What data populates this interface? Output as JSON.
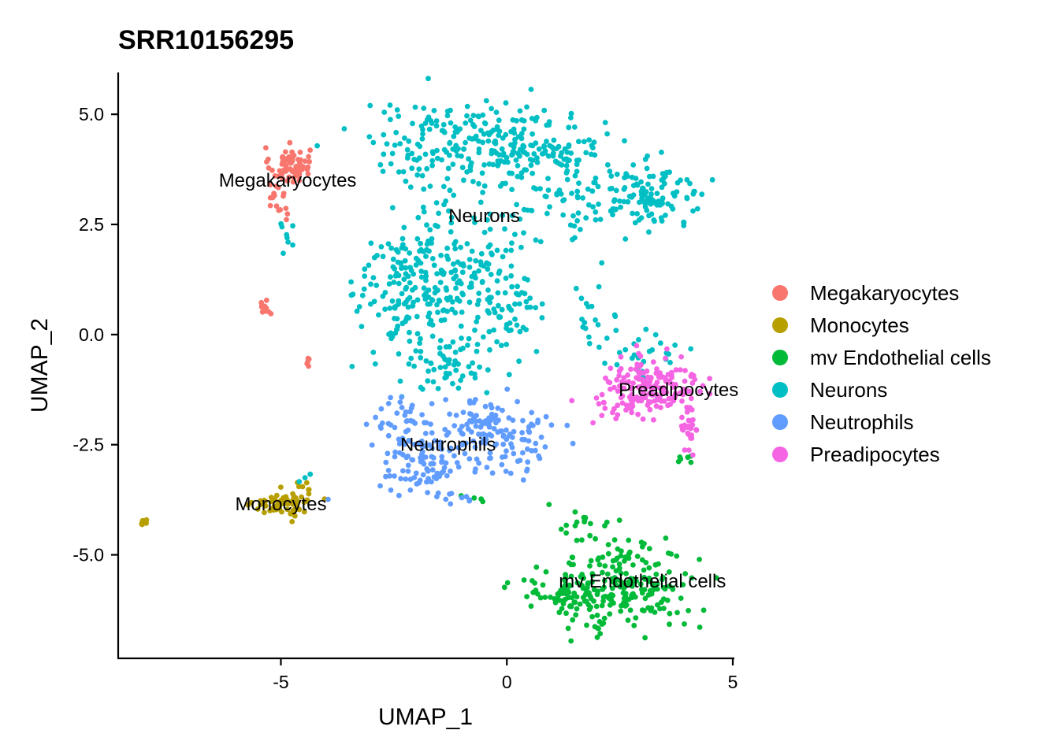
{
  "chart_data": {
    "type": "scatter",
    "title": "SRR10156295",
    "xlabel": "UMAP_1",
    "ylabel": "UMAP_2",
    "xlim": [
      -8.6,
      5.0
    ],
    "ylim": [
      -7.35,
      5.95
    ],
    "x_ticks": [
      {
        "value": -5,
        "label": "-5"
      },
      {
        "value": 0,
        "label": "0"
      },
      {
        "value": 5,
        "label": "5"
      }
    ],
    "y_ticks": [
      {
        "value": 5.0,
        "label": "5.0"
      },
      {
        "value": 2.5,
        "label": "2.5"
      },
      {
        "value": 0.0,
        "label": "0.0"
      },
      {
        "value": -2.5,
        "label": "-2.5"
      },
      {
        "value": -5.0,
        "label": "-5.0"
      }
    ],
    "grid": false,
    "legend_position": "right",
    "series": [
      {
        "name": "Megakaryocytes",
        "color": "#F8766D",
        "regions": [
          {
            "cx": -4.8,
            "cy": 3.85,
            "sx": 0.22,
            "sy": 0.2,
            "n": 70
          },
          {
            "cx": -5.05,
            "cy": 3.1,
            "sx": 0.15,
            "sy": 0.35,
            "n": 18
          },
          {
            "cx": -5.35,
            "cy": 0.62,
            "sx": 0.07,
            "sy": 0.08,
            "n": 12
          },
          {
            "cx": -4.4,
            "cy": -0.55,
            "sx": 0.05,
            "sy": 0.08,
            "n": 5
          }
        ]
      },
      {
        "name": "Monocytes",
        "color": "#B79F00",
        "regions": [
          {
            "cx": -5.0,
            "cy": -3.85,
            "sx": 0.3,
            "sy": 0.15,
            "n": 55
          },
          {
            "cx": -4.55,
            "cy": -3.6,
            "sx": 0.12,
            "sy": 0.2,
            "n": 15
          },
          {
            "cx": -8.05,
            "cy": -4.25,
            "sx": 0.05,
            "sy": 0.04,
            "n": 8
          }
        ]
      },
      {
        "name": "mv Endothelial cells",
        "color": "#00BA38",
        "regions": [
          {
            "cx": 2.6,
            "cy": -5.7,
            "sx": 0.8,
            "sy": 0.55,
            "n": 230
          },
          {
            "cx": 1.3,
            "cy": -5.95,
            "sx": 0.5,
            "sy": 0.2,
            "n": 45
          },
          {
            "cx": 1.5,
            "cy": -4.3,
            "sx": 0.4,
            "sy": 0.2,
            "n": 15
          },
          {
            "cx": 3.95,
            "cy": -2.75,
            "sx": 0.12,
            "sy": 0.12,
            "n": 6
          },
          {
            "cx": -0.6,
            "cy": -3.7,
            "sx": 0.2,
            "sy": 0.08,
            "n": 4
          }
        ]
      },
      {
        "name": "Neurons",
        "color": "#00BFC4",
        "regions": [
          {
            "cx": -1.0,
            "cy": 4.3,
            "sx": 1.1,
            "sy": 0.5,
            "n": 200
          },
          {
            "cx": 0.9,
            "cy": 4.3,
            "sx": 0.6,
            "sy": 0.35,
            "n": 90
          },
          {
            "cx": 3.2,
            "cy": 3.15,
            "sx": 0.6,
            "sy": 0.35,
            "n": 110
          },
          {
            "cx": 1.5,
            "cy": 3.0,
            "sx": 0.7,
            "sy": 0.45,
            "n": 60
          },
          {
            "cx": -2.0,
            "cy": 1.1,
            "sx": 0.65,
            "sy": 0.8,
            "n": 210
          },
          {
            "cx": -0.5,
            "cy": 1.6,
            "sx": 0.6,
            "sy": 0.7,
            "n": 90
          },
          {
            "cx": -1.3,
            "cy": -0.6,
            "sx": 0.6,
            "sy": 0.4,
            "n": 60
          },
          {
            "cx": 0.2,
            "cy": 0.3,
            "sx": 0.3,
            "sy": 0.4,
            "n": 35
          },
          {
            "cx": 1.9,
            "cy": 0.3,
            "sx": 0.3,
            "sy": 0.4,
            "n": 20
          },
          {
            "cx": 3.0,
            "cy": -0.5,
            "sx": 0.6,
            "sy": 0.3,
            "n": 25
          },
          {
            "cx": -4.8,
            "cy": 2.0,
            "sx": 0.1,
            "sy": 0.5,
            "n": 8
          },
          {
            "cx": -4.4,
            "cy": -3.2,
            "sx": 0.1,
            "sy": 0.1,
            "n": 3
          }
        ]
      },
      {
        "name": "Neutrophils",
        "color": "#619CFF",
        "regions": [
          {
            "cx": -1.8,
            "cy": -2.9,
            "sx": 0.55,
            "sy": 0.3,
            "n": 90
          },
          {
            "cx": -0.5,
            "cy": -2.2,
            "sx": 0.6,
            "sy": 0.35,
            "n": 110
          },
          {
            "cx": -2.3,
            "cy": -1.9,
            "sx": 0.3,
            "sy": 0.3,
            "n": 35
          },
          {
            "cx": -1.3,
            "cy": -3.7,
            "sx": 0.4,
            "sy": 0.08,
            "n": 10
          },
          {
            "cx": 0.4,
            "cy": -2.6,
            "sx": 0.4,
            "sy": 0.4,
            "n": 30
          }
        ]
      },
      {
        "name": "Preadipocytes",
        "color": "#F564E3",
        "regions": [
          {
            "cx": 3.2,
            "cy": -1.15,
            "sx": 0.55,
            "sy": 0.35,
            "n": 150
          },
          {
            "cx": 2.6,
            "cy": -1.6,
            "sx": 0.35,
            "sy": 0.25,
            "n": 30
          },
          {
            "cx": 4.0,
            "cy": -2.3,
            "sx": 0.12,
            "sy": 0.3,
            "n": 25
          }
        ]
      }
    ],
    "cluster_labels": [
      {
        "text": "Megakaryocytes",
        "x": -4.85,
        "y": 3.5
      },
      {
        "text": "Neurons",
        "x": -0.5,
        "y": 2.7
      },
      {
        "text": "Preadipocytes",
        "x": 3.8,
        "y": -1.25
      },
      {
        "text": "Neutrophils",
        "x": -1.3,
        "y": -2.5
      },
      {
        "text": "Monocytes",
        "x": -5.0,
        "y": -3.85
      },
      {
        "text": "mv Endothelial cells",
        "x": 3.0,
        "y": -5.6
      }
    ]
  }
}
